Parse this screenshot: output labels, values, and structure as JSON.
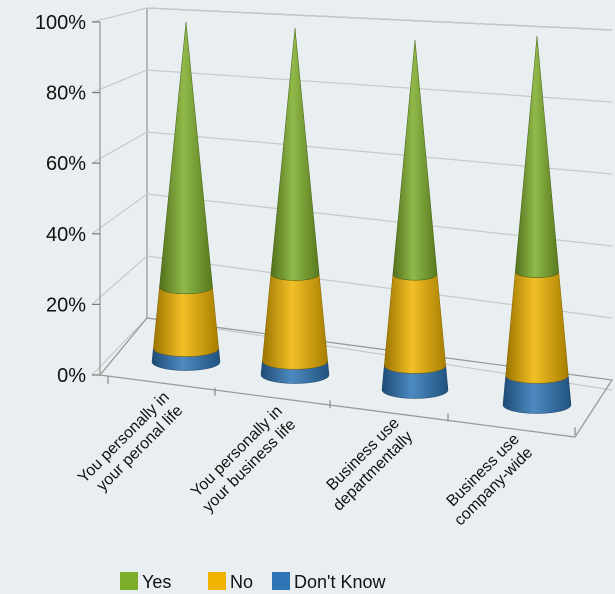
{
  "chart_data": {
    "type": "bar",
    "subtype": "3d-stacked-percent-cone",
    "categories": [
      [
        "You personally in",
        "your peronal life"
      ],
      [
        "You personally in",
        "your business life"
      ],
      [
        "Business use",
        "departmentally"
      ],
      [
        "Business use",
        "company-wide"
      ]
    ],
    "series": [
      {
        "name": "Don't Know",
        "color": "#2e75b6",
        "values": [
          4,
          4,
          7,
          8
        ]
      },
      {
        "name": "No",
        "color": "#f0b400",
        "values": [
          18,
          25,
          26,
          28
        ]
      },
      {
        "name": "Yes",
        "color": "#7cad2a",
        "values": [
          78,
          71,
          67,
          64
        ]
      }
    ],
    "ylim": [
      0,
      100
    ],
    "yticks": [
      "0%",
      "20%",
      "40%",
      "60%",
      "80%",
      "100%"
    ],
    "grid": true,
    "legend": "bottom",
    "legend_order": [
      "Yes",
      "No",
      "Don't Know"
    ]
  }
}
